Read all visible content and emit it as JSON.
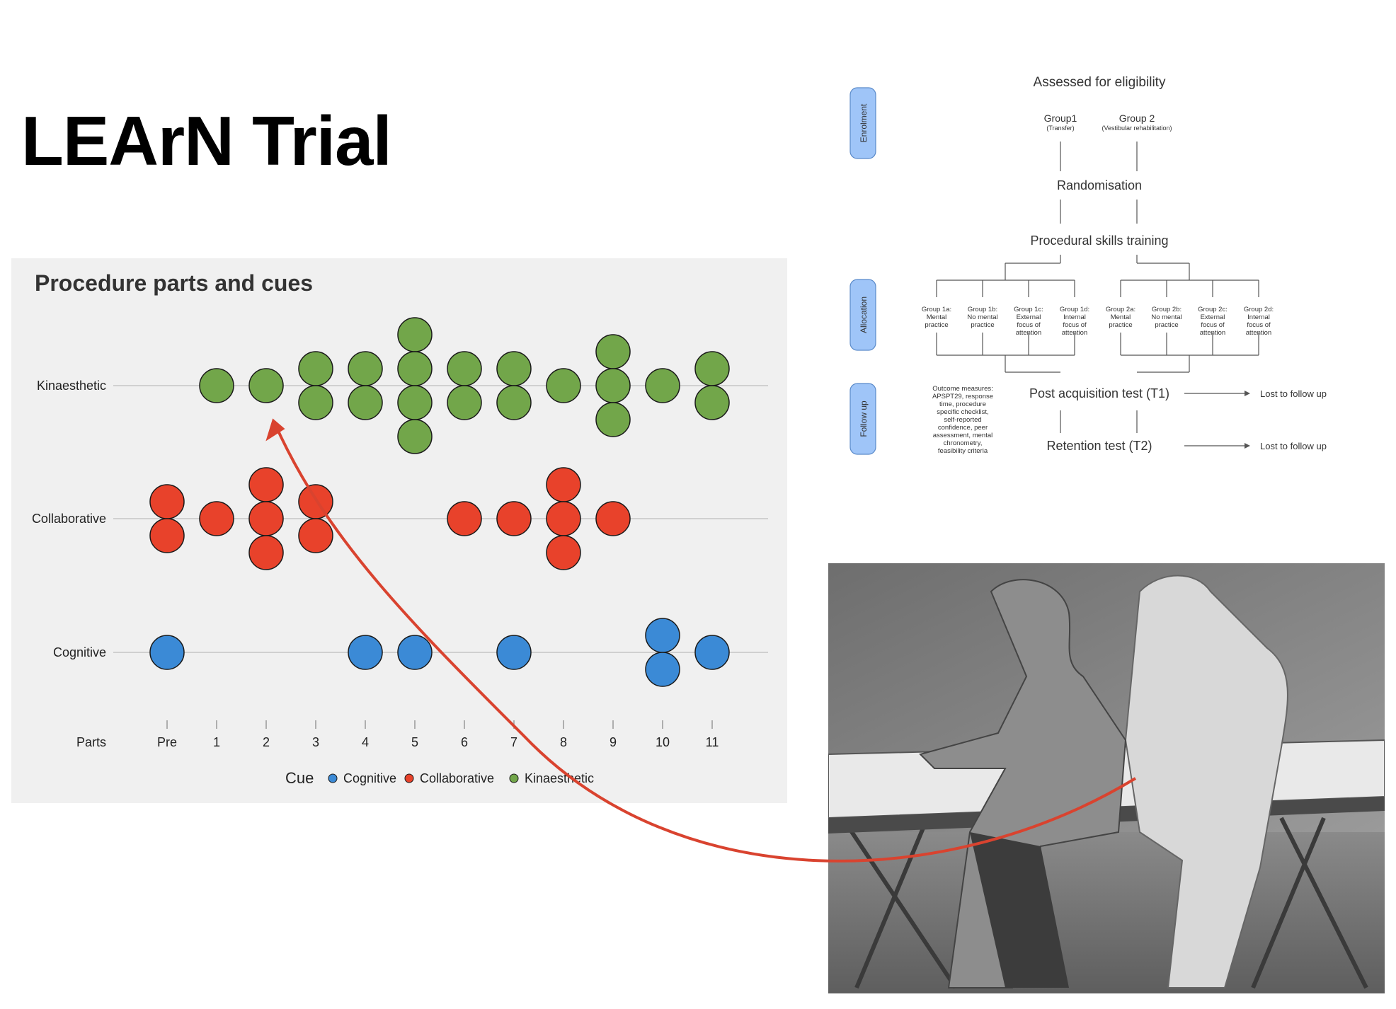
{
  "slide": {
    "title": "LEArN Trial"
  },
  "colors": {
    "cognitive": "#3b8ad6",
    "collaborative": "#e8422b",
    "kinaesthetic": "#72a64a",
    "arrow": "#d9432f",
    "flow_tab": "#9fc5f8"
  },
  "chart_data": {
    "type": "scatter",
    "title": "Procedure parts and cues",
    "x_axis_label": "Parts",
    "categories": [
      "Pre",
      "1",
      "2",
      "3",
      "4",
      "5",
      "6",
      "7",
      "8",
      "9",
      "10",
      "11"
    ],
    "rows": [
      "Kinaesthetic",
      "Collaborative",
      "Cognitive"
    ],
    "legend_title": "Cue",
    "legend_position": "bottom",
    "grid": true,
    "series": [
      {
        "name": "Cognitive",
        "row": "Cognitive",
        "counts": [
          1,
          0,
          0,
          0,
          1,
          1,
          0,
          1,
          0,
          0,
          2,
          1
        ]
      },
      {
        "name": "Collaborative",
        "row": "Collaborative",
        "counts": [
          2,
          1,
          3,
          2,
          0,
          0,
          1,
          1,
          3,
          1,
          0,
          0
        ]
      },
      {
        "name": "Kinaesthetic",
        "row": "Kinaesthetic",
        "counts": [
          0,
          1,
          1,
          2,
          2,
          4,
          2,
          2,
          1,
          3,
          1,
          2
        ]
      }
    ]
  },
  "flowchart": {
    "tabs": [
      "Enrolment",
      "Allocation",
      "Follow up"
    ],
    "assessed": "Assessed for eligibility",
    "group1": "Group1",
    "group1_sub": "(Transfer)",
    "group2": "Group 2",
    "group2_sub": "(Vestibular rehabilitation)",
    "randomisation": "Randomisation",
    "training": "Procedural skills training",
    "subgroups": [
      [
        "Group 1a:",
        "Mental",
        "practice"
      ],
      [
        "Group 1b:",
        "No mental",
        "practice"
      ],
      [
        "Group 1c:",
        "External",
        "focus of",
        "attention"
      ],
      [
        "Group 1d:",
        "Internal",
        "focus of",
        "attention"
      ],
      [
        "Group 2a:",
        "Mental",
        "practice"
      ],
      [
        "Group 2b:",
        "No mental",
        "practice"
      ],
      [
        "Group 2c:",
        "External",
        "focus of",
        "attention"
      ],
      [
        "Group 2d:",
        "Internal",
        "focus of",
        "attention"
      ]
    ],
    "outcome_lines": [
      "Outcome measures:",
      "APSPT29, response",
      "time, procedure",
      "specific checklist,",
      "self-reported",
      "confidence, peer",
      "assessment, mental",
      "chronometry,",
      "feasibility criteria"
    ],
    "post_test": "Post acquisition test (T1)",
    "retention_test": "Retention test (T2)",
    "lost1": "Lost to follow up",
    "lost2": "Lost to follow up"
  }
}
